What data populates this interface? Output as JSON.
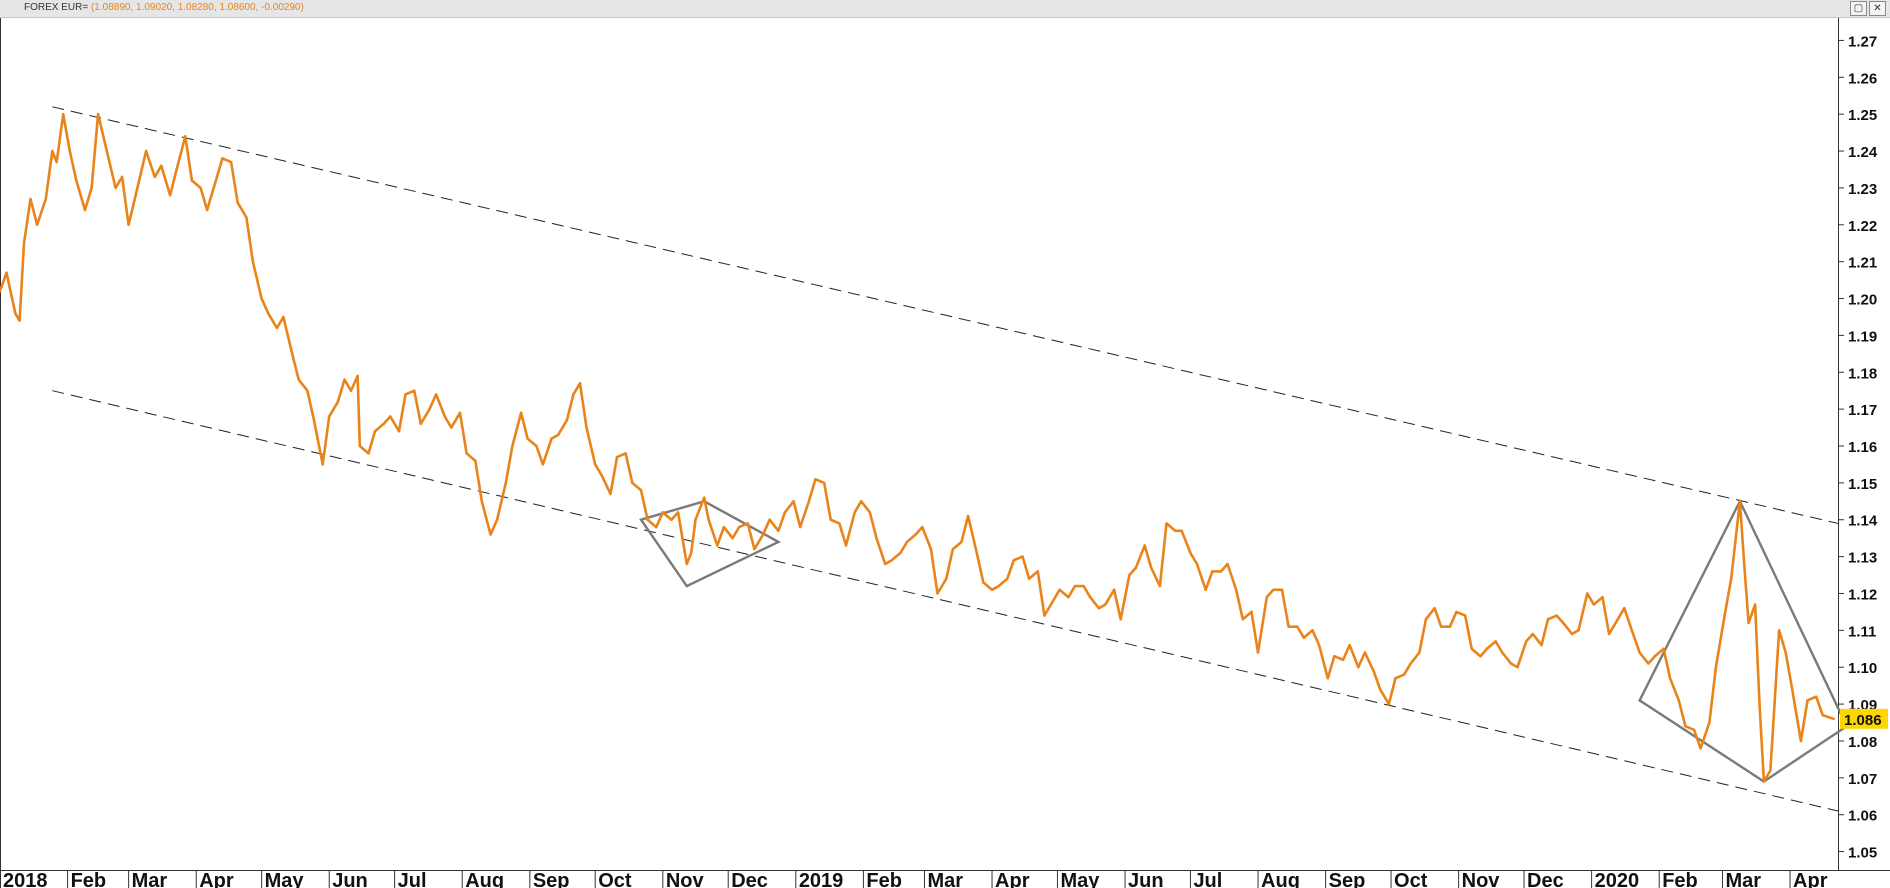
{
  "window": {
    "instrument": "FOREX EUR=",
    "ohlc_readout": "(1.08890, 1.09020, 1.08280, 1.08600, -0.00290)",
    "restore_glyph": "▢",
    "close_glyph": "✕"
  },
  "chart_data": {
    "type": "line",
    "title": "FOREX EUR=",
    "x_axis": {
      "tick_labels": [
        "2018",
        "Feb",
        "Mar",
        "Apr",
        "May",
        "Jun",
        "Jul",
        "Aug",
        "Sep",
        "Oct",
        "Nov",
        "Dec",
        "2019",
        "Feb",
        "Mar",
        "Apr",
        "May",
        "Jun",
        "Jul",
        "Aug",
        "Sep",
        "Oct",
        "Nov",
        "Dec",
        "2020",
        "Feb",
        "Mar",
        "Apr"
      ],
      "range": [
        "2018-01-01",
        "2020-04-23"
      ]
    },
    "y_axis": {
      "position": "right",
      "ylim": [
        1.045,
        1.275
      ],
      "ticks": [
        "1.05",
        "1.06",
        "1.07",
        "1.08",
        "1.09",
        "1.10",
        "1.11",
        "1.12",
        "1.13",
        "1.14",
        "1.15",
        "1.16",
        "1.17",
        "1.18",
        "1.19",
        "1.20",
        "1.21",
        "1.22",
        "1.23",
        "1.24",
        "1.25",
        "1.26",
        "1.27"
      ]
    },
    "last_value_label": "1.086",
    "grid": false,
    "line_color": "#e8841a",
    "series": [
      {
        "points": [
          [
            "2018-01-01",
            1.202
          ],
          [
            "2018-01-04",
            1.207
          ],
          [
            "2018-01-08",
            1.196
          ],
          [
            "2018-01-10",
            1.194
          ],
          [
            "2018-01-12",
            1.215
          ],
          [
            "2018-01-15",
            1.227
          ],
          [
            "2018-01-18",
            1.22
          ],
          [
            "2018-01-22",
            1.227
          ],
          [
            "2018-01-25",
            1.24
          ],
          [
            "2018-01-27",
            1.237
          ],
          [
            "2018-01-30",
            1.25
          ],
          [
            "2018-02-02",
            1.24
          ],
          [
            "2018-02-05",
            1.232
          ],
          [
            "2018-02-09",
            1.224
          ],
          [
            "2018-02-12",
            1.23
          ],
          [
            "2018-02-15",
            1.25
          ],
          [
            "2018-02-19",
            1.24
          ],
          [
            "2018-02-23",
            1.23
          ],
          [
            "2018-02-26",
            1.233
          ],
          [
            "2018-03-01",
            1.22
          ],
          [
            "2018-03-05",
            1.23
          ],
          [
            "2018-03-09",
            1.24
          ],
          [
            "2018-03-13",
            1.233
          ],
          [
            "2018-03-16",
            1.236
          ],
          [
            "2018-03-20",
            1.228
          ],
          [
            "2018-03-23",
            1.235
          ],
          [
            "2018-03-27",
            1.244
          ],
          [
            "2018-03-30",
            1.232
          ],
          [
            "2018-04-03",
            1.23
          ],
          [
            "2018-04-06",
            1.224
          ],
          [
            "2018-04-10",
            1.232
          ],
          [
            "2018-04-13",
            1.238
          ],
          [
            "2018-04-17",
            1.237
          ],
          [
            "2018-04-20",
            1.226
          ],
          [
            "2018-04-24",
            1.222
          ],
          [
            "2018-04-27",
            1.21
          ],
          [
            "2018-05-01",
            1.2
          ],
          [
            "2018-05-04",
            1.196
          ],
          [
            "2018-05-08",
            1.192
          ],
          [
            "2018-05-11",
            1.195
          ],
          [
            "2018-05-15",
            1.185
          ],
          [
            "2018-05-18",
            1.178
          ],
          [
            "2018-05-22",
            1.175
          ],
          [
            "2018-05-25",
            1.167
          ],
          [
            "2018-05-29",
            1.155
          ],
          [
            "2018-06-01",
            1.168
          ],
          [
            "2018-06-05",
            1.172
          ],
          [
            "2018-06-08",
            1.178
          ],
          [
            "2018-06-11",
            1.175
          ],
          [
            "2018-06-14",
            1.179
          ],
          [
            "2018-06-15",
            1.16
          ],
          [
            "2018-06-19",
            1.158
          ],
          [
            "2018-06-22",
            1.164
          ],
          [
            "2018-06-26",
            1.166
          ],
          [
            "2018-06-29",
            1.168
          ],
          [
            "2018-07-03",
            1.164
          ],
          [
            "2018-07-06",
            1.174
          ],
          [
            "2018-07-10",
            1.175
          ],
          [
            "2018-07-13",
            1.166
          ],
          [
            "2018-07-17",
            1.17
          ],
          [
            "2018-07-20",
            1.174
          ],
          [
            "2018-07-24",
            1.168
          ],
          [
            "2018-07-27",
            1.165
          ],
          [
            "2018-07-31",
            1.169
          ],
          [
            "2018-08-03",
            1.158
          ],
          [
            "2018-08-07",
            1.156
          ],
          [
            "2018-08-10",
            1.145
          ],
          [
            "2018-08-14",
            1.136
          ],
          [
            "2018-08-17",
            1.14
          ],
          [
            "2018-08-21",
            1.15
          ],
          [
            "2018-08-24",
            1.16
          ],
          [
            "2018-08-28",
            1.169
          ],
          [
            "2018-08-31",
            1.162
          ],
          [
            "2018-09-04",
            1.16
          ],
          [
            "2018-09-07",
            1.155
          ],
          [
            "2018-09-11",
            1.162
          ],
          [
            "2018-09-14",
            1.163
          ],
          [
            "2018-09-18",
            1.167
          ],
          [
            "2018-09-21",
            1.174
          ],
          [
            "2018-09-24",
            1.177
          ],
          [
            "2018-09-27",
            1.165
          ],
          [
            "2018-10-01",
            1.155
          ],
          [
            "2018-10-04",
            1.152
          ],
          [
            "2018-10-08",
            1.147
          ],
          [
            "2018-10-11",
            1.157
          ],
          [
            "2018-10-15",
            1.158
          ],
          [
            "2018-10-18",
            1.15
          ],
          [
            "2018-10-22",
            1.148
          ],
          [
            "2018-10-25",
            1.14
          ],
          [
            "2018-10-29",
            1.138
          ],
          [
            "2018-11-01",
            1.142
          ],
          [
            "2018-11-05",
            1.14
          ],
          [
            "2018-11-08",
            1.142
          ],
          [
            "2018-11-12",
            1.128
          ],
          [
            "2018-11-14",
            1.131
          ],
          [
            "2018-11-16",
            1.14
          ],
          [
            "2018-11-20",
            1.146
          ],
          [
            "2018-11-22",
            1.14
          ],
          [
            "2018-11-26",
            1.133
          ],
          [
            "2018-11-29",
            1.138
          ],
          [
            "2018-12-03",
            1.135
          ],
          [
            "2018-12-06",
            1.138
          ],
          [
            "2018-12-10",
            1.139
          ],
          [
            "2018-12-13",
            1.132
          ],
          [
            "2018-12-17",
            1.136
          ],
          [
            "2018-12-20",
            1.14
          ],
          [
            "2018-12-24",
            1.137
          ],
          [
            "2018-12-27",
            1.142
          ],
          [
            "2018-12-31",
            1.145
          ],
          [
            "2019-01-03",
            1.138
          ],
          [
            "2019-01-07",
            1.145
          ],
          [
            "2019-01-10",
            1.151
          ],
          [
            "2019-01-14",
            1.15
          ],
          [
            "2019-01-17",
            1.14
          ],
          [
            "2019-01-21",
            1.139
          ],
          [
            "2019-01-24",
            1.133
          ],
          [
            "2019-01-28",
            1.142
          ],
          [
            "2019-01-31",
            1.145
          ],
          [
            "2019-02-04",
            1.142
          ],
          [
            "2019-02-07",
            1.135
          ],
          [
            "2019-02-11",
            1.128
          ],
          [
            "2019-02-14",
            1.129
          ],
          [
            "2019-02-18",
            1.131
          ],
          [
            "2019-02-21",
            1.134
          ],
          [
            "2019-02-25",
            1.136
          ],
          [
            "2019-02-28",
            1.138
          ],
          [
            "2019-03-04",
            1.132
          ],
          [
            "2019-03-07",
            1.12
          ],
          [
            "2019-03-11",
            1.124
          ],
          [
            "2019-03-14",
            1.132
          ],
          [
            "2019-03-18",
            1.134
          ],
          [
            "2019-03-21",
            1.141
          ],
          [
            "2019-03-25",
            1.131
          ],
          [
            "2019-03-28",
            1.123
          ],
          [
            "2019-04-01",
            1.121
          ],
          [
            "2019-04-04",
            1.122
          ],
          [
            "2019-04-08",
            1.124
          ],
          [
            "2019-04-11",
            1.129
          ],
          [
            "2019-04-15",
            1.13
          ],
          [
            "2019-04-18",
            1.124
          ],
          [
            "2019-04-22",
            1.126
          ],
          [
            "2019-04-25",
            1.114
          ],
          [
            "2019-04-29",
            1.118
          ],
          [
            "2019-05-02",
            1.121
          ],
          [
            "2019-05-06",
            1.119
          ],
          [
            "2019-05-09",
            1.122
          ],
          [
            "2019-05-13",
            1.122
          ],
          [
            "2019-05-16",
            1.119
          ],
          [
            "2019-05-20",
            1.116
          ],
          [
            "2019-05-23",
            1.117
          ],
          [
            "2019-05-27",
            1.121
          ],
          [
            "2019-05-30",
            1.113
          ],
          [
            "2019-06-03",
            1.125
          ],
          [
            "2019-06-06",
            1.127
          ],
          [
            "2019-06-10",
            1.133
          ],
          [
            "2019-06-13",
            1.127
          ],
          [
            "2019-06-17",
            1.122
          ],
          [
            "2019-06-20",
            1.139
          ],
          [
            "2019-06-24",
            1.137
          ],
          [
            "2019-06-27",
            1.137
          ],
          [
            "2019-07-01",
            1.131
          ],
          [
            "2019-07-04",
            1.128
          ],
          [
            "2019-07-08",
            1.121
          ],
          [
            "2019-07-11",
            1.126
          ],
          [
            "2019-07-15",
            1.126
          ],
          [
            "2019-07-18",
            1.128
          ],
          [
            "2019-07-22",
            1.121
          ],
          [
            "2019-07-25",
            1.113
          ],
          [
            "2019-07-29",
            1.115
          ],
          [
            "2019-08-01",
            1.104
          ],
          [
            "2019-08-05",
            1.119
          ],
          [
            "2019-08-08",
            1.121
          ],
          [
            "2019-08-12",
            1.121
          ],
          [
            "2019-08-15",
            1.111
          ],
          [
            "2019-08-19",
            1.111
          ],
          [
            "2019-08-22",
            1.108
          ],
          [
            "2019-08-26",
            1.11
          ],
          [
            "2019-08-29",
            1.106
          ],
          [
            "2019-09-02",
            1.097
          ],
          [
            "2019-09-05",
            1.103
          ],
          [
            "2019-09-09",
            1.102
          ],
          [
            "2019-09-12",
            1.106
          ],
          [
            "2019-09-16",
            1.1
          ],
          [
            "2019-09-19",
            1.104
          ],
          [
            "2019-09-23",
            1.099
          ],
          [
            "2019-09-26",
            1.094
          ],
          [
            "2019-09-30",
            1.09
          ],
          [
            "2019-10-03",
            1.097
          ],
          [
            "2019-10-07",
            1.098
          ],
          [
            "2019-10-10",
            1.101
          ],
          [
            "2019-10-14",
            1.104
          ],
          [
            "2019-10-17",
            1.113
          ],
          [
            "2019-10-21",
            1.116
          ],
          [
            "2019-10-24",
            1.111
          ],
          [
            "2019-10-28",
            1.111
          ],
          [
            "2019-10-31",
            1.115
          ],
          [
            "2019-11-04",
            1.114
          ],
          [
            "2019-11-07",
            1.105
          ],
          [
            "2019-11-11",
            1.103
          ],
          [
            "2019-11-14",
            1.105
          ],
          [
            "2019-11-18",
            1.107
          ],
          [
            "2019-11-21",
            1.104
          ],
          [
            "2019-11-25",
            1.101
          ],
          [
            "2019-11-28",
            1.1
          ],
          [
            "2019-12-02",
            1.107
          ],
          [
            "2019-12-05",
            1.109
          ],
          [
            "2019-12-09",
            1.106
          ],
          [
            "2019-12-12",
            1.113
          ],
          [
            "2019-12-16",
            1.114
          ],
          [
            "2019-12-19",
            1.112
          ],
          [
            "2019-12-23",
            1.109
          ],
          [
            "2019-12-26",
            1.11
          ],
          [
            "2019-12-30",
            1.12
          ],
          [
            "2020-01-02",
            1.117
          ],
          [
            "2020-01-06",
            1.119
          ],
          [
            "2020-01-09",
            1.109
          ],
          [
            "2020-01-13",
            1.113
          ],
          [
            "2020-01-16",
            1.116
          ],
          [
            "2020-01-20",
            1.109
          ],
          [
            "2020-01-23",
            1.104
          ],
          [
            "2020-01-27",
            1.101
          ],
          [
            "2020-01-30",
            1.103
          ],
          [
            "2020-02-03",
            1.105
          ],
          [
            "2020-02-06",
            1.097
          ],
          [
            "2020-02-10",
            1.091
          ],
          [
            "2020-02-13",
            1.084
          ],
          [
            "2020-02-17",
            1.083
          ],
          [
            "2020-02-20",
            1.078
          ],
          [
            "2020-02-24",
            1.085
          ],
          [
            "2020-02-27",
            1.1
          ],
          [
            "2020-03-02",
            1.114
          ],
          [
            "2020-03-05",
            1.124
          ],
          [
            "2020-03-09",
            1.145
          ],
          [
            "2020-03-11",
            1.128
          ],
          [
            "2020-03-13",
            1.112
          ],
          [
            "2020-03-16",
            1.117
          ],
          [
            "2020-03-18",
            1.09
          ],
          [
            "2020-03-20",
            1.069
          ],
          [
            "2020-03-23",
            1.072
          ],
          [
            "2020-03-27",
            1.11
          ],
          [
            "2020-03-30",
            1.104
          ],
          [
            "2020-04-02",
            1.094
          ],
          [
            "2020-04-06",
            1.08
          ],
          [
            "2020-04-09",
            1.091
          ],
          [
            "2020-04-13",
            1.092
          ],
          [
            "2020-04-16",
            1.087
          ],
          [
            "2020-04-21",
            1.086
          ]
        ]
      }
    ],
    "annotations": {
      "channel_lines": [
        {
          "style": "dashed",
          "from": [
            "2018-01-25",
            1.252
          ],
          "to": [
            "2020-04-23",
            1.139
          ]
        },
        {
          "style": "dashed",
          "from": [
            "2018-01-25",
            1.175
          ],
          "to": [
            "2020-04-23",
            1.061
          ]
        }
      ],
      "patterns": [
        {
          "shape": "diamond",
          "points": [
            [
              "2018-10-22",
              1.14
            ],
            [
              "2018-11-20",
              1.145
            ],
            [
              "2018-12-24",
              1.134
            ],
            [
              "2018-11-12",
              1.122
            ]
          ]
        },
        {
          "shape": "triangle",
          "points": [
            [
              "2020-01-23",
              1.091
            ],
            [
              "2020-03-09",
              1.145
            ],
            [
              "2020-04-27",
              1.084
            ],
            [
              "2020-03-20",
              1.069
            ]
          ]
        }
      ]
    }
  }
}
